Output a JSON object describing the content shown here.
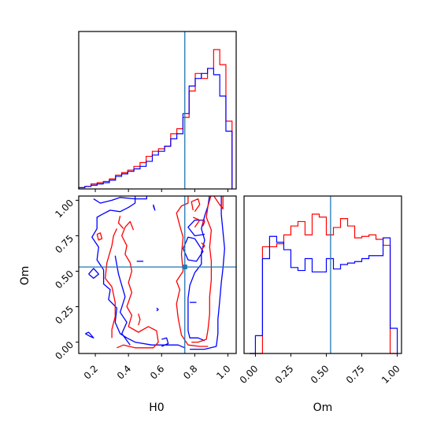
{
  "colors": {
    "series_a": "#ff0000",
    "series_b": "#0000ff",
    "truth": "#1f77b4",
    "axes": "#000000"
  },
  "chart_data": [
    {
      "type": "histogram",
      "panel": "top-left",
      "variable": "H0",
      "xlim": [
        0.1,
        1.05
      ],
      "bin_edges": [
        0.1,
        0.137,
        0.174,
        0.211,
        0.248,
        0.285,
        0.322,
        0.359,
        0.396,
        0.433,
        0.47,
        0.507,
        0.544,
        0.581,
        0.618,
        0.655,
        0.692,
        0.729,
        0.766,
        0.803,
        0.84,
        0.877,
        0.914,
        0.951,
        0.988,
        1.025
      ],
      "series": [
        {
          "color": "red",
          "counts": [
            1,
            2,
            4,
            5,
            6,
            8,
            11,
            13,
            15,
            18,
            21,
            26,
            30,
            32,
            34,
            44,
            48,
            57,
            78,
            92,
            88,
            96,
            111,
            99,
            54
          ]
        },
        {
          "color": "blue",
          "counts": [
            1,
            2,
            3,
            4,
            5,
            7,
            10,
            12,
            14,
            16,
            18,
            22,
            27,
            30,
            34,
            40,
            44,
            60,
            82,
            88,
            92,
            96,
            91,
            74,
            46
          ]
        }
      ],
      "truth_x": 0.74,
      "xticks": [
        0.2,
        0.4,
        0.6,
        0.8,
        1.0
      ]
    },
    {
      "type": "histogram",
      "panel": "bottom-right",
      "variable": "Om",
      "xlim": [
        -0.08,
        1.03
      ],
      "bin_edges": [
        -0.04,
        0.0,
        0.05,
        0.1,
        0.15,
        0.2,
        0.25,
        0.3,
        0.35,
        0.4,
        0.45,
        0.5,
        0.55,
        0.6,
        0.65,
        0.7,
        0.75,
        0.8,
        0.85,
        0.9,
        0.95,
        1.0
      ],
      "series": [
        {
          "color": "red",
          "counts": [
            0,
            0,
            72,
            72,
            74,
            80,
            86,
            89,
            80,
            94,
            92,
            80,
            85,
            91,
            86,
            78,
            79,
            80,
            77,
            73,
            0
          ]
        },
        {
          "color": "blue",
          "counts": [
            0,
            12,
            64,
            79,
            75,
            70,
            58,
            56,
            64,
            55,
            55,
            64,
            57,
            60,
            61,
            62,
            64,
            66,
            66,
            78,
            17
          ]
        }
      ],
      "truth_x": 0.53,
      "xticks": [
        0.0,
        0.25,
        0.5,
        0.75,
        1.0
      ]
    },
    {
      "type": "contour",
      "panel": "bottom-left",
      "x_variable": "H0",
      "y_variable": "Om",
      "xlim": [
        0.1,
        1.05
      ],
      "ylim": [
        -0.08,
        1.03
      ],
      "truth": {
        "x": 0.74,
        "y": 0.53
      },
      "xticks": [
        0.2,
        0.4,
        0.6,
        0.8,
        1.0
      ],
      "yticks": [
        0.0,
        0.25,
        0.5,
        0.75,
        1.0
      ],
      "xlabel": "H0",
      "ylabel": "Om",
      "contours": [
        {
          "color": "blue",
          "points": [
            [
              0.19,
              1.01
            ],
            [
              0.23,
              0.98
            ],
            [
              0.3,
              1.0
            ],
            [
              0.35,
              1.02
            ],
            [
              0.44,
              1.01
            ],
            [
              0.51,
              1.01
            ],
            [
              0.51,
              1.03
            ]
          ]
        },
        {
          "color": "blue",
          "points": [
            [
              0.44,
              1.03
            ],
            [
              0.44,
              0.98
            ],
            [
              0.4,
              0.95
            ],
            [
              0.35,
              0.92
            ],
            [
              0.29,
              0.93
            ],
            [
              0.24,
              0.9
            ],
            [
              0.21,
              0.88
            ],
            [
              0.21,
              0.8
            ],
            [
              0.18,
              0.74
            ],
            [
              0.22,
              0.67
            ],
            [
              0.21,
              0.58
            ],
            [
              0.25,
              0.51
            ],
            [
              0.25,
              0.41
            ],
            [
              0.29,
              0.37
            ],
            [
              0.28,
              0.3
            ],
            [
              0.33,
              0.24
            ],
            [
              0.32,
              0.14
            ],
            [
              0.35,
              0.06
            ],
            [
              0.39,
              0.03
            ],
            [
              0.44,
              0.0
            ],
            [
              0.54,
              -0.02
            ],
            [
              0.62,
              -0.02
            ],
            [
              0.7,
              -0.02
            ],
            [
              0.74,
              -0.04
            ]
          ]
        },
        {
          "color": "blue",
          "points": [
            [
              0.89,
              1.04
            ],
            [
              0.88,
              0.96
            ],
            [
              0.86,
              0.89
            ],
            [
              0.84,
              0.8
            ],
            [
              0.86,
              0.72
            ],
            [
              0.84,
              0.63
            ],
            [
              0.84,
              0.55
            ],
            [
              0.8,
              0.49
            ],
            [
              0.77,
              0.4
            ],
            [
              0.76,
              0.31
            ],
            [
              0.76,
              0.19
            ],
            [
              0.76,
              0.08
            ],
            [
              0.77,
              0.03
            ],
            [
              0.82,
              0.03
            ],
            [
              0.86,
              0.01
            ]
          ]
        },
        {
          "color": "blue",
          "points": [
            [
              0.96,
              1.04
            ],
            [
              0.96,
              0.9
            ],
            [
              0.97,
              0.78
            ],
            [
              0.98,
              0.66
            ],
            [
              0.97,
              0.52
            ],
            [
              0.96,
              0.42
            ],
            [
              0.95,
              0.28
            ],
            [
              0.94,
              0.16
            ],
            [
              0.94,
              0.06
            ],
            [
              0.93,
              -0.03
            ],
            [
              0.86,
              -0.05
            ],
            [
              0.77,
              -0.05
            ]
          ]
        },
        {
          "color": "blue",
          "points": [
            [
              0.86,
              0.86
            ],
            [
              0.8,
              0.86
            ],
            [
              0.76,
              0.81
            ],
            [
              0.8,
              0.75
            ],
            [
              0.86,
              0.76
            ]
          ]
        },
        {
          "color": "blue",
          "points": [
            [
              0.8,
              0.73
            ],
            [
              0.85,
              0.64
            ],
            [
              0.81,
              0.57
            ],
            [
              0.76,
              0.58
            ],
            [
              0.73,
              0.66
            ],
            [
              0.76,
              0.74
            ],
            [
              0.8,
              0.73
            ]
          ]
        },
        {
          "color": "blue",
          "points": [
            [
              0.32,
              0.61
            ],
            [
              0.34,
              0.48
            ],
            [
              0.38,
              0.32
            ],
            [
              0.35,
              0.21
            ],
            [
              0.39,
              0.14
            ],
            [
              0.36,
              0.06
            ],
            [
              0.41,
              -0.02
            ]
          ]
        },
        {
          "color": "blue",
          "points": [
            [
              0.6,
              -0.03
            ],
            [
              0.64,
              -0.01
            ],
            [
              0.63,
              0.03
            ],
            [
              0.6,
              0.02
            ]
          ]
        },
        {
          "color": "blue",
          "points": [
            [
              0.16,
              0.48
            ],
            [
              0.19,
              0.45
            ],
            [
              0.22,
              0.48
            ],
            [
              0.19,
              0.52
            ],
            [
              0.16,
              0.48
            ]
          ]
        },
        {
          "color": "blue",
          "points": [
            [
              0.14,
              0.06
            ],
            [
              0.17,
              0.04
            ],
            [
              0.19,
              0.03
            ],
            [
              0.16,
              0.07
            ],
            [
              0.14,
              0.06
            ]
          ]
        },
        {
          "color": "blue",
          "points": [
            [
              0.45,
              0.57
            ],
            [
              0.49,
              0.57
            ]
          ]
        },
        {
          "color": "blue",
          "points": [
            [
              0.77,
              0.28
            ],
            [
              0.81,
              0.28
            ]
          ]
        },
        {
          "color": "blue",
          "points": [
            [
              0.55,
              0.97
            ],
            [
              0.56,
              0.93
            ],
            [
              0.55,
              0.96
            ]
          ]
        },
        {
          "color": "blue",
          "points": [
            [
              0.57,
              0.24
            ],
            [
              0.58,
              0.23
            ],
            [
              0.57,
              0.22
            ]
          ]
        },
        {
          "color": "red",
          "points": [
            [
              0.38,
              0.81
            ],
            [
              0.36,
              0.75
            ],
            [
              0.39,
              0.68
            ],
            [
              0.38,
              0.62
            ],
            [
              0.41,
              0.56
            ],
            [
              0.42,
              0.5
            ],
            [
              0.4,
              0.42
            ],
            [
              0.42,
              0.35
            ],
            [
              0.39,
              0.25
            ],
            [
              0.42,
              0.19
            ],
            [
              0.4,
              0.11
            ],
            [
              0.46,
              0.07
            ],
            [
              0.52,
              0.11
            ],
            [
              0.57,
              0.08
            ],
            [
              0.58,
              0.0
            ],
            [
              0.55,
              -0.04
            ],
            [
              0.44,
              -0.04
            ],
            [
              0.37,
              -0.02
            ],
            [
              0.33,
              -0.04
            ]
          ]
        },
        {
          "color": "red",
          "points": [
            [
              0.38,
              0.81
            ],
            [
              0.41,
              0.85
            ],
            [
              0.43,
              0.79
            ]
          ]
        },
        {
          "color": "red",
          "points": [
            [
              0.33,
              0.8
            ],
            [
              0.31,
              0.75
            ],
            [
              0.3,
              0.68
            ],
            [
              0.27,
              0.56
            ],
            [
              0.26,
              0.45
            ],
            [
              0.3,
              0.39
            ],
            [
              0.32,
              0.28
            ],
            [
              0.32,
              0.18
            ],
            [
              0.3,
              0.09
            ],
            [
              0.3,
              0.03
            ]
          ]
        },
        {
          "color": "red",
          "points": [
            [
              0.76,
              1.04
            ],
            [
              0.76,
              0.98
            ],
            [
              0.72,
              0.96
            ],
            [
              0.69,
              0.91
            ],
            [
              0.71,
              0.82
            ],
            [
              0.73,
              0.74
            ],
            [
              0.72,
              0.62
            ],
            [
              0.73,
              0.5
            ],
            [
              0.69,
              0.43
            ],
            [
              0.71,
              0.37
            ],
            [
              0.69,
              0.27
            ],
            [
              0.7,
              0.17
            ],
            [
              0.72,
              0.05
            ],
            [
              0.76,
              -0.02
            ],
            [
              0.83,
              -0.03
            ],
            [
              0.88,
              -0.03
            ]
          ]
        },
        {
          "color": "red",
          "points": [
            [
              0.9,
              1.04
            ],
            [
              0.88,
              0.96
            ],
            [
              0.87,
              0.88
            ],
            [
              0.9,
              0.79
            ],
            [
              0.89,
              0.67
            ],
            [
              0.9,
              0.57
            ],
            [
              0.9,
              0.44
            ],
            [
              0.89,
              0.32
            ],
            [
              0.89,
              0.2
            ],
            [
              0.88,
              0.09
            ],
            [
              0.87,
              0.02
            ],
            [
              0.82,
              0.0
            ],
            [
              0.78,
              0.0
            ]
          ]
        },
        {
          "color": "red",
          "points": [
            [
              0.21,
              0.76
            ],
            [
              0.22,
              0.72
            ],
            [
              0.24,
              0.73
            ],
            [
              0.23,
              0.77
            ],
            [
              0.21,
              0.76
            ]
          ]
        },
        {
          "color": "red",
          "points": [
            [
              0.91,
              1.04
            ],
            [
              0.95,
              0.97
            ],
            [
              0.97,
              0.94
            ],
            [
              0.97,
              1.04
            ]
          ]
        },
        {
          "color": "red",
          "points": [
            [
              0.8,
              0.92
            ],
            [
              0.83,
              0.97
            ],
            [
              0.82,
              1.01
            ],
            [
              0.78,
              0.99
            ],
            [
              0.79,
              0.93
            ]
          ]
        },
        {
          "color": "red",
          "points": [
            [
              0.79,
              0.88
            ],
            [
              0.83,
              0.86
            ],
            [
              0.8,
              0.81
            ]
          ]
        },
        {
          "color": "red",
          "points": [
            [
              0.85,
              0.86
            ],
            [
              0.85,
              0.82
            ],
            [
              0.86,
              0.85
            ],
            [
              0.85,
              0.86
            ]
          ]
        },
        {
          "color": "red",
          "points": [
            [
              0.84,
              0.7
            ],
            [
              0.86,
              0.68
            ],
            [
              0.84,
              0.65
            ]
          ]
        },
        {
          "color": "red",
          "points": [
            [
              0.46,
              0.2
            ],
            [
              0.47,
              0.16
            ],
            [
              0.46,
              0.12
            ]
          ]
        },
        {
          "color": "red",
          "points": [
            [
              0.35,
              0.89
            ],
            [
              0.34,
              0.84
            ],
            [
              0.37,
              0.8
            ]
          ]
        }
      ]
    }
  ]
}
